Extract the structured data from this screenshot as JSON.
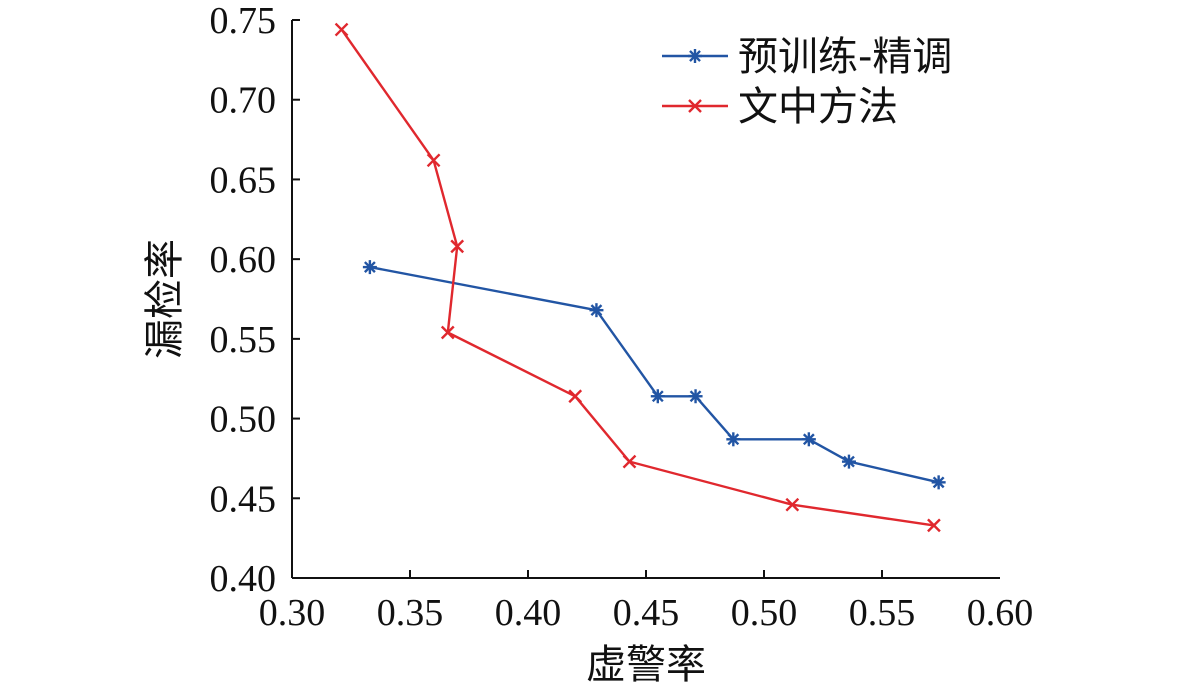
{
  "chart_data": {
    "type": "line",
    "title": "",
    "xlabel": "虚警率",
    "ylabel": "漏检率",
    "xlim": [
      0.3,
      0.6
    ],
    "ylim": [
      0.4,
      0.75
    ],
    "xticks": [
      "0.30",
      "0.35",
      "0.40",
      "0.45",
      "0.50",
      "0.55",
      "0.60"
    ],
    "yticks": [
      "0.40",
      "0.45",
      "0.50",
      "0.55",
      "0.60",
      "0.65",
      "0.70",
      "0.75"
    ],
    "grid": false,
    "legend_position": "top-right",
    "series": [
      {
        "name": "预训练-精调",
        "color": "#2255a4",
        "marker": "asterisk",
        "points": [
          [
            0.333,
            0.595
          ],
          [
            0.429,
            0.568
          ],
          [
            0.455,
            0.514
          ],
          [
            0.471,
            0.514
          ],
          [
            0.487,
            0.487
          ],
          [
            0.519,
            0.487
          ],
          [
            0.536,
            0.473
          ],
          [
            0.574,
            0.46
          ]
        ]
      },
      {
        "name": "文中方法",
        "color": "#e0282e",
        "marker": "x",
        "points": [
          [
            0.321,
            0.744
          ],
          [
            0.36,
            0.662
          ],
          [
            0.37,
            0.608
          ],
          [
            0.366,
            0.554
          ],
          [
            0.42,
            0.514
          ],
          [
            0.443,
            0.473
          ],
          [
            0.512,
            0.446
          ],
          [
            0.572,
            0.433
          ]
        ]
      }
    ]
  }
}
